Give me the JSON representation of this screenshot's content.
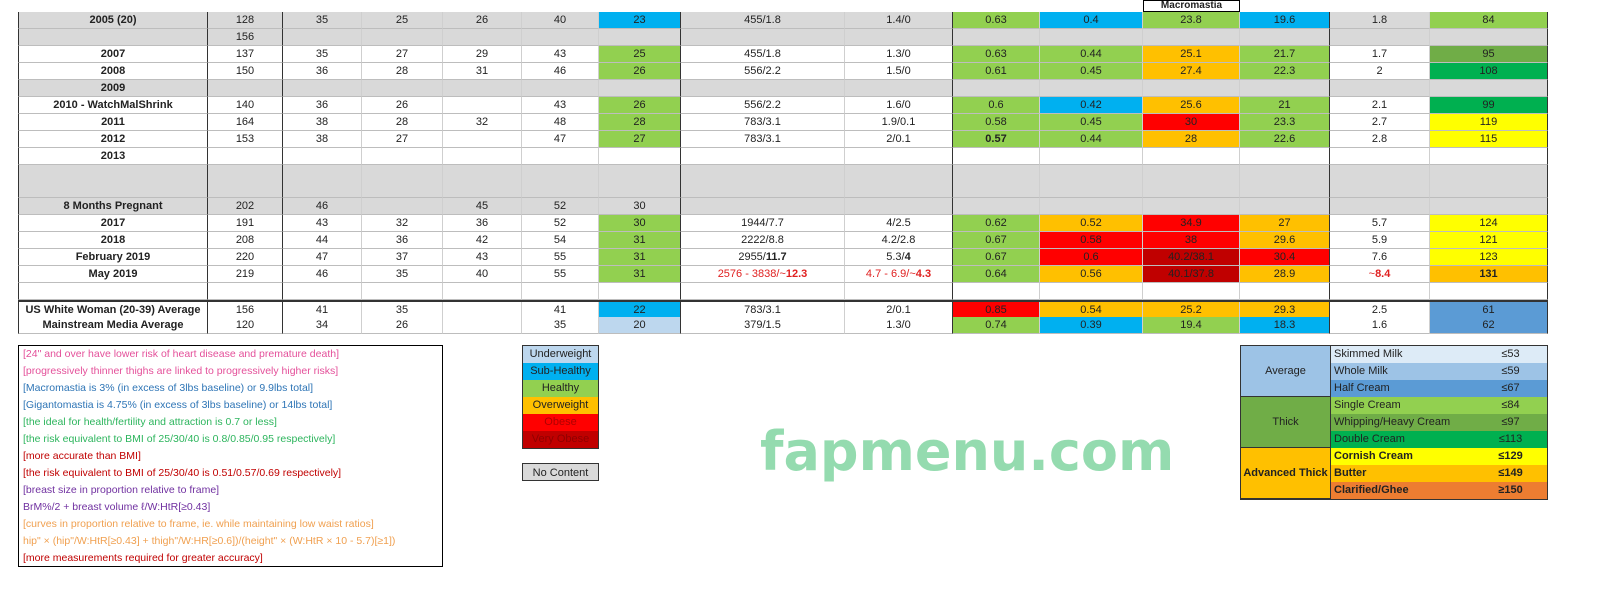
{
  "colors": {
    "U": "#bdd7ee",
    "S": "#00b0f0",
    "H": "#92d050",
    "O": "#ffc000",
    "R": "#ff0000",
    "V": "#c00000",
    "skimmed": "#ddebf7",
    "whole": "#9dc3e6",
    "half": "#5b9bd5",
    "single": "#92d050",
    "whipping": "#70ad47",
    "double": "#00b050",
    "cornish": "#ffff00",
    "butter": "#ffc000",
    "ghee": "#ed7d31",
    "gray": "#d9d9d9"
  },
  "header": {
    "macromastia": "Macromastia"
  },
  "rows": [
    {
      "bg": "gray",
      "label": "2005 (20)",
      "cells": [
        "128",
        "35",
        "25",
        "26",
        "40",
        {
          "v": "23",
          "c": "S"
        },
        "455/1.8",
        "1.4/0",
        {
          "v": "0.63",
          "c": "H"
        },
        {
          "v": "0.4",
          "c": "S"
        },
        {
          "v": "23.8",
          "c": "H"
        },
        {
          "v": "19.6",
          "c": "S"
        },
        "1.8",
        {
          "v": "84",
          "c": "single"
        }
      ]
    },
    {
      "bg": "gray",
      "label": "",
      "cells": [
        "156",
        "",
        "",
        "",
        "",
        "",
        "",
        "",
        "",
        "",
        "",
        "",
        "",
        ""
      ]
    },
    {
      "bg": "white",
      "label": "2007",
      "cells": [
        "137",
        "35",
        "27",
        "29",
        "43",
        {
          "v": "25",
          "c": "H"
        },
        "455/1.8",
        "1.3/0",
        {
          "v": "0.63",
          "c": "H"
        },
        {
          "v": "0.44",
          "c": "H"
        },
        {
          "v": "25.1",
          "c": "O"
        },
        {
          "v": "21.7",
          "c": "H"
        },
        "1.7",
        {
          "v": "95",
          "c": "whipping"
        }
      ]
    },
    {
      "bg": "white",
      "label": "2008",
      "cells": [
        "150",
        "36",
        "28",
        "31",
        "46",
        {
          "v": "26",
          "c": "H"
        },
        "556/2.2",
        "1.5/0",
        {
          "v": "0.61",
          "c": "H"
        },
        {
          "v": "0.45",
          "c": "H"
        },
        {
          "v": "27.4",
          "c": "O"
        },
        {
          "v": "22.3",
          "c": "H"
        },
        "2",
        {
          "v": "108",
          "c": "double"
        }
      ]
    },
    {
      "bg": "gray",
      "label": "2009",
      "cells": [
        "",
        "",
        "",
        "",
        "",
        "",
        "",
        "",
        "",
        "",
        "",
        "",
        "",
        ""
      ]
    },
    {
      "bg": "white",
      "label": "2010 - WatchMalShrink",
      "cells": [
        "140",
        "36",
        "26",
        "",
        "43",
        {
          "v": "26",
          "c": "H"
        },
        "556/2.2",
        "1.6/0",
        {
          "v": "0.6",
          "c": "H"
        },
        {
          "v": "0.42",
          "c": "S"
        },
        {
          "v": "25.6",
          "c": "O"
        },
        {
          "v": "21",
          "c": "H"
        },
        "2.1",
        {
          "v": "99",
          "c": "double"
        }
      ]
    },
    {
      "bg": "white",
      "label": "2011",
      "cells": [
        "164",
        "38",
        "28",
        "32",
        "48",
        {
          "v": "28",
          "c": "H"
        },
        "783/3.1",
        "1.9/0.1",
        {
          "v": "0.58",
          "c": "H"
        },
        {
          "v": "0.45",
          "c": "H"
        },
        {
          "v": "30",
          "c": "R"
        },
        {
          "v": "23.3",
          "c": "H"
        },
        "2.7",
        {
          "v": "119",
          "c": "cornish"
        }
      ]
    },
    {
      "bg": "white",
      "label": "2012",
      "cells": [
        "153",
        "38",
        "27",
        "",
        "47",
        {
          "v": "27",
          "c": "H"
        },
        "783/3.1",
        "2/0.1",
        {
          "v": "0.57",
          "c": "H",
          "b": true
        },
        {
          "v": "0.44",
          "c": "H"
        },
        {
          "v": "28",
          "c": "O"
        },
        {
          "v": "22.6",
          "c": "H"
        },
        "2.8",
        {
          "v": "115",
          "c": "cornish"
        }
      ]
    },
    {
      "bg": "white",
      "label": "2013",
      "cells": [
        "",
        "",
        "",
        "",
        "",
        "",
        "",
        "",
        "",
        "",
        "",
        "",
        "",
        ""
      ]
    },
    {
      "bg": "gray",
      "tall": true,
      "label": "",
      "cells": [
        "",
        "",
        "",
        "",
        "",
        "",
        "",
        "",
        "",
        "",
        "",
        "",
        "",
        ""
      ]
    },
    {
      "bg": "gray",
      "label": "8 Months Pregnant",
      "cells": [
        "202",
        "46",
        "",
        "45",
        "52",
        "30",
        "",
        "",
        "",
        "",
        "",
        "",
        "",
        ""
      ]
    },
    {
      "bg": "white",
      "label": "2017",
      "cells": [
        "191",
        "43",
        "32",
        "36",
        "52",
        {
          "v": "30",
          "c": "H"
        },
        "1944/7.7",
        "4/2.5",
        {
          "v": "0.62",
          "c": "H"
        },
        {
          "v": "0.52",
          "c": "O"
        },
        {
          "v": "34.9",
          "c": "R"
        },
        {
          "v": "27",
          "c": "O"
        },
        "5.7",
        {
          "v": "124",
          "c": "cornish"
        }
      ]
    },
    {
      "bg": "white",
      "label": "2018",
      "cells": [
        "208",
        "44",
        "36",
        "42",
        "54",
        {
          "v": "31",
          "c": "H"
        },
        "2222/8.8",
        "4.2/2.8",
        {
          "v": "0.67",
          "c": "H"
        },
        {
          "v": "0.58",
          "c": "R"
        },
        {
          "v": "38",
          "c": "R"
        },
        {
          "v": "29.6",
          "c": "O"
        },
        "5.9",
        {
          "v": "121",
          "c": "cornish"
        }
      ]
    },
    {
      "bg": "white",
      "label": "February 2019",
      "cells": [
        "220",
        "47",
        "37",
        "43",
        "55",
        {
          "v": "31",
          "c": "H"
        },
        {
          "v": "2955/",
          "s": "11.7"
        },
        {
          "v": "5.3/",
          "s": "4"
        },
        {
          "v": "0.67",
          "c": "H"
        },
        {
          "v": "0.6",
          "c": "R"
        },
        {
          "v": "40.2/38.1",
          "c": "V"
        },
        {
          "v": "30.4",
          "c": "R"
        },
        "7.6",
        {
          "v": "123",
          "c": "cornish"
        }
      ]
    },
    {
      "bg": "white",
      "label": "May 2019",
      "cells": [
        "219",
        "46",
        "35",
        "40",
        "55",
        {
          "v": "31",
          "c": "H"
        },
        {
          "v": "2576 - 3838/~",
          "s": "12.3",
          "red": true
        },
        {
          "v": "4.7 - 6.9/~",
          "s": "4.3",
          "red": true
        },
        {
          "v": "0.64",
          "c": "H"
        },
        {
          "v": "0.56",
          "c": "O"
        },
        {
          "v": "40.1/37.8",
          "c": "V"
        },
        {
          "v": "28.9",
          "c": "O"
        },
        {
          "v": "~",
          "s": "8.4",
          "red": true
        },
        {
          "v": "131",
          "c": "butter",
          "b": true
        }
      ]
    },
    {
      "bg": "white",
      "label": "",
      "cells": [
        "",
        "",
        "",
        "",
        "",
        "",
        "",
        "",
        "",
        "",
        "",
        "",
        "",
        ""
      ]
    },
    {
      "bg": "white",
      "label": "US White Woman (20-39) Average",
      "cells": [
        "156",
        "41",
        "35",
        "",
        "41",
        {
          "v": "22",
          "c": "S"
        },
        "783/3.1",
        "2/0.1",
        {
          "v": "0.85",
          "c": "R"
        },
        {
          "v": "0.54",
          "c": "O"
        },
        {
          "v": "25.2",
          "c": "O"
        },
        {
          "v": "29.3",
          "c": "O"
        },
        "2.5",
        {
          "v": "61",
          "c": "half"
        }
      ]
    },
    {
      "bg": "white",
      "label": "Mainstream Media Average",
      "cells": [
        "120",
        "34",
        "26",
        "",
        "35",
        {
          "v": "20",
          "c": "U"
        },
        "379/1.5",
        "1.3/0",
        {
          "v": "0.74",
          "c": "H"
        },
        {
          "v": "0.39",
          "c": "S"
        },
        {
          "v": "19.4",
          "c": "H"
        },
        {
          "v": "18.3",
          "c": "S"
        },
        "1.6",
        {
          "v": "62",
          "c": "half"
        }
      ]
    }
  ],
  "notes": [
    {
      "text": "[24\" and over have lower risk of heart disease and premature death]",
      "color": "#e4509a"
    },
    {
      "text": "[progressively thinner thighs are linked to progressively higher risks]",
      "color": "#e4509a"
    },
    {
      "text": "[Macromastia is 3% (in excess of 3lbs baseline) or 9.9lbs total]",
      "color": "#2e75b6"
    },
    {
      "text": "[Gigantomastia is 4.75% (in excess of 3lbs baseline) or 14lbs total]",
      "color": "#2e75b6"
    },
    {
      "text": "[the ideal for health/fertility and attraction is 0.7 or less]",
      "color": "#2db55d"
    },
    {
      "text": "[the risk equivalent to BMI of 25/30/40 is 0.8/0.85/0.95 respectively]",
      "color": "#2db55d"
    },
    {
      "text": "[more accurate than BMI]",
      "color": "#c00000"
    },
    {
      "text": "[the risk equivalent to BMI of 25/30/40 is 0.51/0.57/0.69 respectively]",
      "color": "#c00000"
    },
    {
      "text": "[breast size in proportion relative to frame]",
      "color": "#7030a0"
    },
    {
      "text": "BrM%/2 + breast volume ℓ/W:HtR[≥0.43]",
      "color": "#7030a0"
    },
    {
      "text": "[curves in proportion relative to frame, ie. while maintaining low waist ratios]",
      "color": "#f0a050"
    },
    {
      "text": "hip\" × (hip\"/W:HtR[≥0.43] + thigh\"/W:HR[≥0.6])/(height\" × (W:HtR × 10 - 5.7)[≥1])",
      "color": "#f0a050"
    },
    {
      "text": "[more measurements required for greater accuracy]",
      "color": "#c00000"
    }
  ],
  "legend": [
    {
      "label": "Underweight",
      "c": "U",
      "fg": "#222"
    },
    {
      "label": "Sub-Healthy",
      "c": "S",
      "fg": "#222"
    },
    {
      "label": "Healthy",
      "c": "H",
      "fg": "#222"
    },
    {
      "label": "Overweight",
      "c": "O",
      "fg": "#222"
    },
    {
      "label": "Obese",
      "c": "R",
      "fg": "#b00000"
    },
    {
      "label": "Very Obese",
      "c": "V",
      "fg": "#900000"
    }
  ],
  "no_content": "No Content",
  "cream": [
    {
      "group": "Average",
      "gc": "#9dc3e6",
      "bold": false,
      "items": [
        {
          "name": "Skimmed Milk",
          "value": "≤53",
          "c": "skimmed"
        },
        {
          "name": "Whole Milk",
          "value": "≤59",
          "c": "whole"
        },
        {
          "name": "Half Cream",
          "value": "≤67",
          "c": "half"
        }
      ]
    },
    {
      "group": "Thick",
      "gc": "#70ad47",
      "bold": false,
      "items": [
        {
          "name": "Single Cream",
          "value": "≤84",
          "c": "single"
        },
        {
          "name": "Whipping/Heavy Cream",
          "value": "≤97",
          "c": "whipping"
        },
        {
          "name": "Double Cream",
          "value": "≤113",
          "c": "double"
        }
      ]
    },
    {
      "group": "Advanced Thick",
      "gc": "#ffc000",
      "bold": true,
      "items": [
        {
          "name": "Cornish Cream",
          "value": "≤129",
          "c": "cornish"
        },
        {
          "name": "Butter",
          "value": "≤149",
          "c": "butter"
        },
        {
          "name": "Clarified/Ghee",
          "value": "≥150",
          "c": "ghee"
        }
      ]
    }
  ],
  "watermark": "fapmenu.com"
}
